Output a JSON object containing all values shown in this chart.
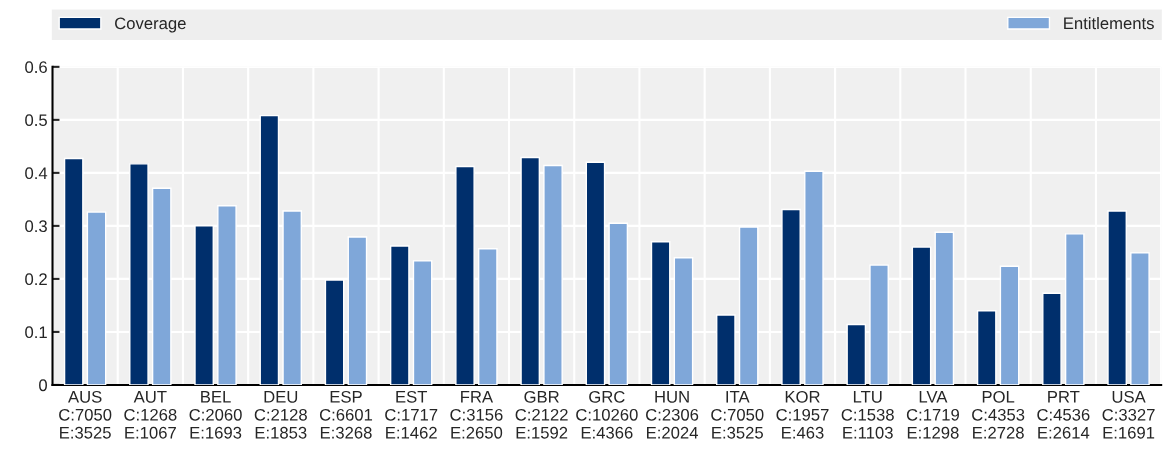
{
  "chart_data": {
    "type": "bar",
    "categories": [
      "AUS\nC:7050\nE:3525",
      "AUT\nC:1268\nE:1067",
      "BEL\nC:2060\nE:1693",
      "DEU\nC:2128\nE:1853",
      "ESP\nC:6601\nE:3268",
      "EST\nC:1717\nE:1462",
      "FRA\nC:3156\nE:2650",
      "GBR\nC:2122\nE:1592",
      "GRC\nC:10260\nE:4366",
      "HUN\nC:2306\nE:2024",
      "ITA\nC:7050\nE:3525",
      "KOR\nC:1957\nE:463",
      "LTU\nC:1538\nE:1103",
      "LVA\nC:1719\nE:1298",
      "POL\nC:4353\nE:2728",
      "PRT\nC:4536\nE:2614",
      "USA\nC:3327\nE:1691"
    ],
    "series": [
      {
        "name": "Coverage",
        "color": "#002f6c",
        "values": [
          0.427,
          0.417,
          0.3,
          0.508,
          0.198,
          0.262,
          0.412,
          0.429,
          0.42,
          0.27,
          0.132,
          0.331,
          0.114,
          0.26,
          0.14,
          0.173,
          0.328
        ]
      },
      {
        "name": "Entitlements",
        "color": "#7fa7d9",
        "values": [
          0.326,
          0.371,
          0.338,
          0.328,
          0.279,
          0.234,
          0.257,
          0.414,
          0.305,
          0.24,
          0.298,
          0.403,
          0.226,
          0.288,
          0.224,
          0.285,
          0.249
        ]
      }
    ],
    "ylim": [
      0,
      0.6
    ],
    "yticks": [
      {
        "value": 0,
        "label": "0"
      },
      0.1,
      0.2,
      0.3,
      0.4,
      0.5,
      0.6
    ],
    "grid": true,
    "legend": "top"
  }
}
